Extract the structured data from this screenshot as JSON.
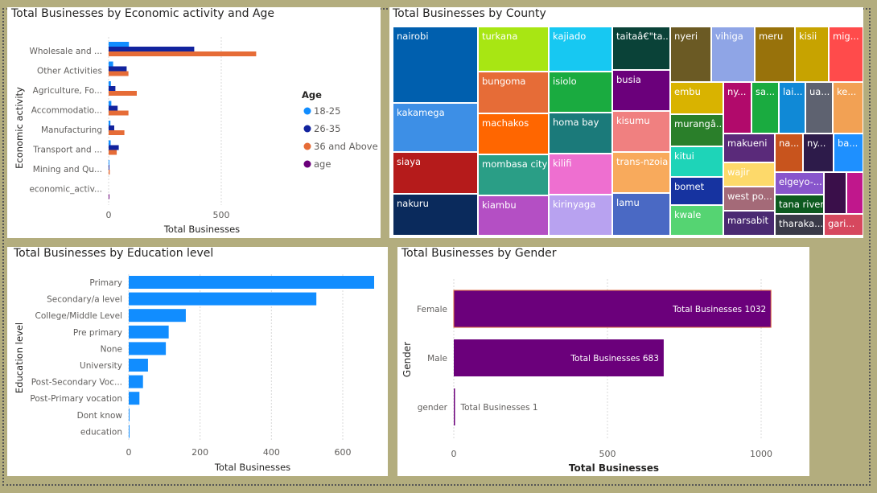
{
  "panels": {
    "economic": {
      "title": "Total Businesses by Economic activity and Age"
    },
    "county": {
      "title": "Total Businesses by County"
    },
    "education": {
      "title": "Total Businesses by Education level"
    },
    "gender": {
      "title": "Total Businesses by Gender"
    }
  },
  "chart_data": [
    {
      "type": "bar",
      "orientation": "horizontal",
      "title": "Total Businesses by Economic activity and Age",
      "xlabel": "Total Businesses",
      "ylabel": "Economic activity",
      "categories": [
        "Wholesale and ...",
        "Other Activities",
        "Agriculture, Fo...",
        "Accommodatio...",
        "Manufacturing",
        "Transport and ...",
        "Mining and Qu...",
        "economic_activ..."
      ],
      "xticks": [
        "0",
        "500"
      ],
      "xlim": [
        0,
        830
      ],
      "legend_title": "Age",
      "legend_position": "right",
      "grid": true,
      "series": [
        {
          "name": "18-25",
          "color": "#118dff",
          "values": [
            90,
            20,
            10,
            12,
            8,
            9,
            2,
            0
          ]
        },
        {
          "name": "26-35",
          "color": "#12239e",
          "values": [
            380,
            80,
            30,
            40,
            25,
            45,
            3,
            0
          ]
        },
        {
          "name": "36 and Above",
          "color": "#e66c37",
          "values": [
            655,
            88,
            125,
            88,
            70,
            36,
            5,
            0
          ]
        },
        {
          "name": "age",
          "color": "#6b007b",
          "values": [
            0,
            0,
            0,
            0,
            0,
            0,
            0,
            1
          ]
        }
      ]
    },
    {
      "type": "treemap",
      "title": "Total Businesses by County",
      "categories": [
        "nairobi",
        "turkana",
        "kajiado",
        "taitaâ€\"ta...",
        "nyeri",
        "vihiga",
        "meru",
        "kisii",
        "mig...",
        "kakamega",
        "bungoma",
        "isiolo",
        "busia",
        "embu",
        "ny...",
        "sa...",
        "lai...",
        "ua...",
        "ke...",
        "siaya",
        "machakos",
        "homa bay",
        "kisumu",
        "murangâ...",
        "kitui",
        "makueni",
        "na...",
        "ny...",
        "ba...",
        "nakuru",
        "mombasa city",
        "kilifi",
        "trans-nzoia",
        "wajir",
        "bomet",
        "west po...",
        "elgeyo-...",
        "kiambu",
        "kirinyaga",
        "lamu",
        "kwale",
        "marsabit",
        "tana river",
        "tharaka...",
        "gari..."
      ]
    },
    {
      "type": "bar",
      "orientation": "horizontal",
      "title": "Total Businesses by Education level",
      "xlabel": "Total Businesses",
      "ylabel": "Education level",
      "categories": [
        "Primary",
        "Secondary/a level",
        "College/Middle Level",
        "Pre primary",
        "None",
        "University",
        "Post-Secondary Voc...",
        "Post-Primary vocation",
        "Dont know",
        "education"
      ],
      "values": [
        688,
        526,
        160,
        112,
        104,
        54,
        40,
        30,
        2,
        1
      ],
      "xticks": [
        "0",
        "200",
        "400",
        "600"
      ],
      "xlim": [
        0,
        680
      ],
      "color": "#118dff",
      "grid": true
    },
    {
      "type": "bar",
      "orientation": "horizontal",
      "title": "Total Businesses by Gender",
      "xlabel": "Total Businesses",
      "ylabel": "Gender",
      "categories": [
        "Female",
        "Male",
        "gender"
      ],
      "values": [
        1032,
        683,
        1
      ],
      "data_labels": [
        "Total Businesses 1032",
        "Total Businesses 683",
        "Total Businesses 1"
      ],
      "xticks": [
        "0",
        "500",
        "1000"
      ],
      "xlim": [
        0,
        1000
      ],
      "color": "#6b007b",
      "grid": true
    }
  ]
}
